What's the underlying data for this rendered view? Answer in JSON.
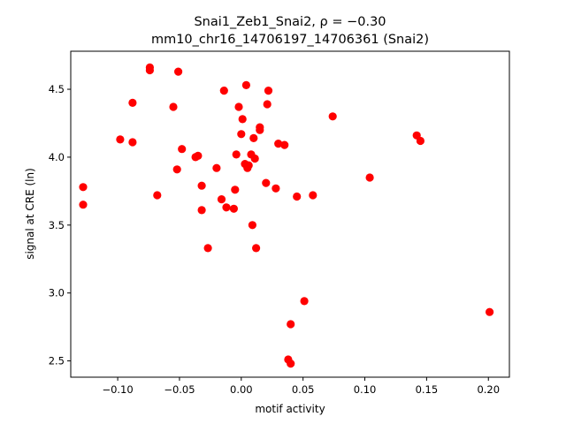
{
  "chart_data": {
    "type": "scatter",
    "title_line1": "Snai1_Zeb1_Snai2, ρ = −0.30",
    "title_line2": "mm10_chr16_14706197_14706361 (Snai2)",
    "xlabel": "motif activity",
    "ylabel": "signal at CRE (ln)",
    "xlim": [
      -0.138,
      0.217
    ],
    "ylim": [
      2.38,
      4.78
    ],
    "xticks": [
      -0.1,
      -0.05,
      0.0,
      0.05,
      0.1,
      0.15,
      0.2
    ],
    "xtick_labels": [
      "−0.10",
      "−0.05",
      "0.00",
      "0.05",
      "0.10",
      "0.15",
      "0.20"
    ],
    "yticks": [
      2.5,
      3.0,
      3.5,
      4.0,
      4.5
    ],
    "ytick_labels": [
      "2.5",
      "3.0",
      "3.5",
      "4.0",
      "4.5"
    ],
    "grid": false,
    "marker_color": "#ff0000",
    "points": [
      {
        "x": -0.128,
        "y": 3.78
      },
      {
        "x": -0.128,
        "y": 3.65
      },
      {
        "x": -0.098,
        "y": 4.13
      },
      {
        "x": -0.088,
        "y": 4.4
      },
      {
        "x": -0.088,
        "y": 4.11
      },
      {
        "x": -0.074,
        "y": 4.66
      },
      {
        "x": -0.074,
        "y": 4.64
      },
      {
        "x": -0.068,
        "y": 3.72
      },
      {
        "x": -0.055,
        "y": 4.37
      },
      {
        "x": -0.051,
        "y": 4.63
      },
      {
        "x": -0.052,
        "y": 3.91
      },
      {
        "x": -0.048,
        "y": 4.06
      },
      {
        "x": -0.037,
        "y": 4.0
      },
      {
        "x": -0.035,
        "y": 4.01
      },
      {
        "x": -0.032,
        "y": 3.79
      },
      {
        "x": -0.032,
        "y": 3.61
      },
      {
        "x": -0.027,
        "y": 3.33
      },
      {
        "x": -0.02,
        "y": 3.92
      },
      {
        "x": -0.016,
        "y": 3.69
      },
      {
        "x": -0.014,
        "y": 4.49
      },
      {
        "x": -0.012,
        "y": 3.63
      },
      {
        "x": -0.006,
        "y": 3.62
      },
      {
        "x": -0.005,
        "y": 3.76
      },
      {
        "x": -0.004,
        "y": 4.02
      },
      {
        "x": -0.002,
        "y": 4.37
      },
      {
        "x": 0.0,
        "y": 4.17
      },
      {
        "x": 0.001,
        "y": 4.28
      },
      {
        "x": 0.003,
        "y": 3.95
      },
      {
        "x": 0.004,
        "y": 4.53
      },
      {
        "x": 0.005,
        "y": 3.92
      },
      {
        "x": 0.006,
        "y": 3.94
      },
      {
        "x": 0.008,
        "y": 4.02
      },
      {
        "x": 0.009,
        "y": 3.5
      },
      {
        "x": 0.01,
        "y": 4.14
      },
      {
        "x": 0.011,
        "y": 3.99
      },
      {
        "x": 0.012,
        "y": 3.33
      },
      {
        "x": 0.015,
        "y": 4.22
      },
      {
        "x": 0.015,
        "y": 4.2
      },
      {
        "x": 0.02,
        "y": 3.81
      },
      {
        "x": 0.021,
        "y": 4.39
      },
      {
        "x": 0.022,
        "y": 4.49
      },
      {
        "x": 0.028,
        "y": 3.77
      },
      {
        "x": 0.03,
        "y": 4.1
      },
      {
        "x": 0.035,
        "y": 4.09
      },
      {
        "x": 0.038,
        "y": 2.51
      },
      {
        "x": 0.04,
        "y": 2.48
      },
      {
        "x": 0.04,
        "y": 2.77
      },
      {
        "x": 0.045,
        "y": 3.71
      },
      {
        "x": 0.051,
        "y": 2.94
      },
      {
        "x": 0.058,
        "y": 3.72
      },
      {
        "x": 0.074,
        "y": 4.3
      },
      {
        "x": 0.104,
        "y": 3.85
      },
      {
        "x": 0.142,
        "y": 4.16
      },
      {
        "x": 0.145,
        "y": 4.12
      },
      {
        "x": 0.201,
        "y": 2.86
      }
    ]
  }
}
